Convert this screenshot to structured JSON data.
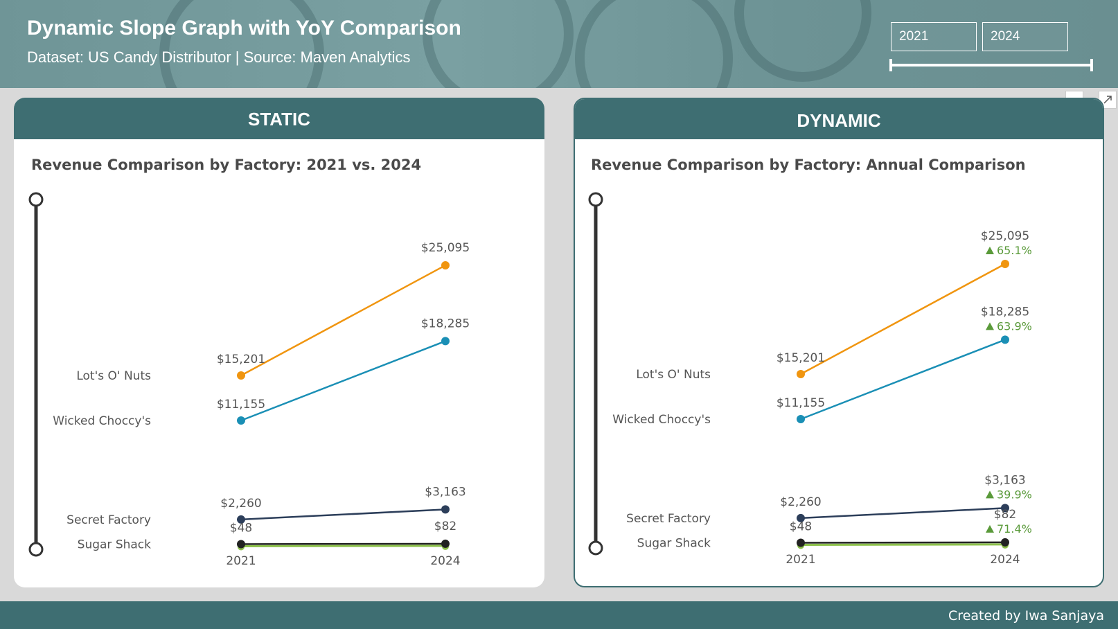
{
  "header": {
    "title": "Dynamic Slope Graph with YoY Comparison",
    "subtitle": "Dataset: US Candy Distributor | Source: Maven Analytics",
    "year_from": "2021",
    "year_to": "2024"
  },
  "footer": {
    "credit": "Created by Iwa Sanjaya"
  },
  "colors": {
    "teal_header": "#3e6e72",
    "lots_o_nuts": "#f0950f",
    "wicked_choccys": "#1a8fb5",
    "secret_factory": "#2c3e5a",
    "sugar_shack": "#222222",
    "sugar_shack_alt": "#8cc04a",
    "positive": "#5a9a3a"
  },
  "chart_data": [
    {
      "panel": "STATIC",
      "type": "line",
      "title": "Revenue Comparison by Factory: 2021 vs. 2024",
      "x": [
        "2021",
        "2024"
      ],
      "series": [
        {
          "name": "Lot's O' Nuts",
          "values": [
            15201,
            25095
          ],
          "labels": [
            "$15,201",
            "$25,095"
          ]
        },
        {
          "name": "Wicked Choccy's",
          "values": [
            11155,
            18285
          ],
          "labels": [
            "$11,155",
            "$18,285"
          ]
        },
        {
          "name": "Secret Factory",
          "values": [
            2260,
            3163
          ],
          "labels": [
            "$2,260",
            "$3,163"
          ]
        },
        {
          "name": "Sugar Shack",
          "values": [
            48,
            82
          ],
          "labels": [
            "$48",
            "$82"
          ]
        }
      ]
    },
    {
      "panel": "DYNAMIC",
      "type": "line",
      "title": "Revenue Comparison by Factory: Annual Comparison",
      "x": [
        "2021",
        "2024"
      ],
      "series": [
        {
          "name": "Lot's O' Nuts",
          "values": [
            15201,
            25095
          ],
          "labels": [
            "$15,201",
            "$25,095"
          ],
          "yoy": "65.1%"
        },
        {
          "name": "Wicked Choccy's",
          "values": [
            11155,
            18285
          ],
          "labels": [
            "$11,155",
            "$18,285"
          ],
          "yoy": "63.9%"
        },
        {
          "name": "Secret Factory",
          "values": [
            2260,
            3163
          ],
          "labels": [
            "$2,260",
            "$3,163"
          ],
          "yoy": "39.9%"
        },
        {
          "name": "Sugar Shack",
          "values": [
            48,
            82
          ],
          "labels": [
            "$48",
            "$82"
          ],
          "yoy": "71.4%"
        }
      ]
    }
  ]
}
